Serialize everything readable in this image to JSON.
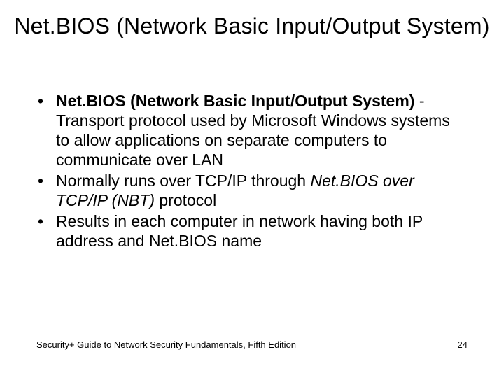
{
  "slide": {
    "title": "Net.BIOS (Network Basic Input/Output System)",
    "title_fontsize": 32,
    "body_fontsize": 23,
    "footer_fontsize": 13,
    "text_color": "#000000",
    "background_color": "#ffffff",
    "bullets": [
      {
        "prefix_bold": "Net.BIOS (Network Basic Input/Output System)",
        "rest": " - Transport protocol used by Microsoft Windows systems to allow applications on separate computers to communicate over LAN"
      },
      {
        "lead": "Normally runs over TCP/IP through ",
        "italic": "Net.BIOS over TCP/IP (NBT)",
        "tail": " protocol"
      },
      {
        "plain": "Results in each computer in network having both IP address and Net.BIOS name"
      }
    ],
    "footer_left": "Security+ Guide to Network Security Fundamentals, Fifth Edition",
    "page_number": "24"
  }
}
